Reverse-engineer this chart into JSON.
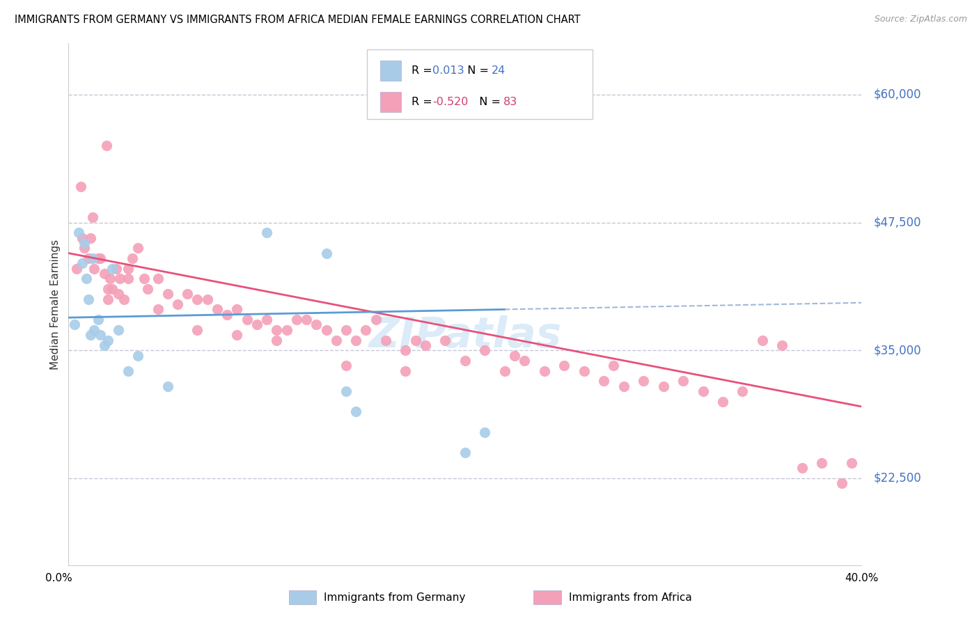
{
  "title": "IMMIGRANTS FROM GERMANY VS IMMIGRANTS FROM AFRICA MEDIAN FEMALE EARNINGS CORRELATION CHART",
  "source": "Source: ZipAtlas.com",
  "ylabel": "Median Female Earnings",
  "yticks": [
    22500,
    35000,
    47500,
    60000
  ],
  "ytick_labels": [
    "$22,500",
    "$35,000",
    "$47,500",
    "$60,000"
  ],
  "xlim": [
    0.0,
    40.0
  ],
  "ylim": [
    14000,
    65000
  ],
  "legend_label1": "Immigrants from Germany",
  "legend_label2": "Immigrants from Africa",
  "r1": "0.013",
  "n1": "24",
  "r2": "-0.520",
  "n2": "83",
  "color_blue_scatter": "#a8cce8",
  "color_pink_scatter": "#f4a0b8",
  "color_blue_line": "#5b9bd5",
  "color_pink_line": "#e8507a",
  "color_blue_text": "#4472c4",
  "color_pink_text": "#d04070",
  "color_dashed_line": "#b8b8d0",
  "color_dashed_trendline": "#a0b8d8",
  "watermark_color": "#b8d8f0",
  "germany_x": [
    0.3,
    0.5,
    0.7,
    0.8,
    0.9,
    1.0,
    1.1,
    1.2,
    1.3,
    1.5,
    1.6,
    1.8,
    2.0,
    2.2,
    2.5,
    3.0,
    3.5,
    5.0,
    10.0,
    13.0,
    14.0,
    14.5,
    20.0,
    21.0
  ],
  "germany_y": [
    37500,
    46500,
    43500,
    45500,
    42000,
    40000,
    36500,
    44000,
    37000,
    38000,
    36500,
    35500,
    36000,
    43000,
    37000,
    33000,
    34500,
    31500,
    46500,
    44500,
    31000,
    29000,
    25000,
    27000
  ],
  "africa_x": [
    0.4,
    0.6,
    0.7,
    0.8,
    1.0,
    1.1,
    1.2,
    1.3,
    1.5,
    1.6,
    1.8,
    1.9,
    2.0,
    2.1,
    2.2,
    2.4,
    2.5,
    2.6,
    2.8,
    3.0,
    3.2,
    3.5,
    3.8,
    4.0,
    4.5,
    5.0,
    5.5,
    6.0,
    6.5,
    7.0,
    7.5,
    8.0,
    8.5,
    9.0,
    9.5,
    10.0,
    10.5,
    11.0,
    11.5,
    12.0,
    12.5,
    13.0,
    13.5,
    14.0,
    14.5,
    15.0,
    15.5,
    16.0,
    17.0,
    17.5,
    18.0,
    19.0,
    20.0,
    21.0,
    22.0,
    22.5,
    23.0,
    24.0,
    25.0,
    26.0,
    27.0,
    27.5,
    28.0,
    29.0,
    30.0,
    31.0,
    32.0,
    33.0,
    34.0,
    35.0,
    36.0,
    37.0,
    38.0,
    39.0,
    39.5,
    2.0,
    3.0,
    4.5,
    6.5,
    8.5,
    10.5,
    14.0,
    17.0
  ],
  "africa_y": [
    43000,
    51000,
    46000,
    45000,
    44000,
    46000,
    48000,
    43000,
    44000,
    44000,
    42500,
    55000,
    41000,
    42000,
    41000,
    43000,
    40500,
    42000,
    40000,
    43000,
    44000,
    45000,
    42000,
    41000,
    42000,
    40500,
    39500,
    40500,
    40000,
    40000,
    39000,
    38500,
    39000,
    38000,
    37500,
    38000,
    37000,
    37000,
    38000,
    38000,
    37500,
    37000,
    36000,
    37000,
    36000,
    37000,
    38000,
    36000,
    35000,
    36000,
    35500,
    36000,
    34000,
    35000,
    33000,
    34500,
    34000,
    33000,
    33500,
    33000,
    32000,
    33500,
    31500,
    32000,
    31500,
    32000,
    31000,
    30000,
    31000,
    36000,
    35500,
    23500,
    24000,
    22000,
    24000,
    40000,
    42000,
    39000,
    37000,
    36500,
    36000,
    33500,
    33000
  ],
  "germany_trend_x0": 0.0,
  "germany_trend_y0": 38200,
  "germany_trend_x1": 22.0,
  "germany_trend_y1": 39000,
  "germany_trend_dash_x0": 22.0,
  "germany_trend_dash_x1": 40.0,
  "africa_trend_x0": 0.0,
  "africa_trend_y0": 44500,
  "africa_trend_x1": 40.0,
  "africa_trend_y1": 29500
}
